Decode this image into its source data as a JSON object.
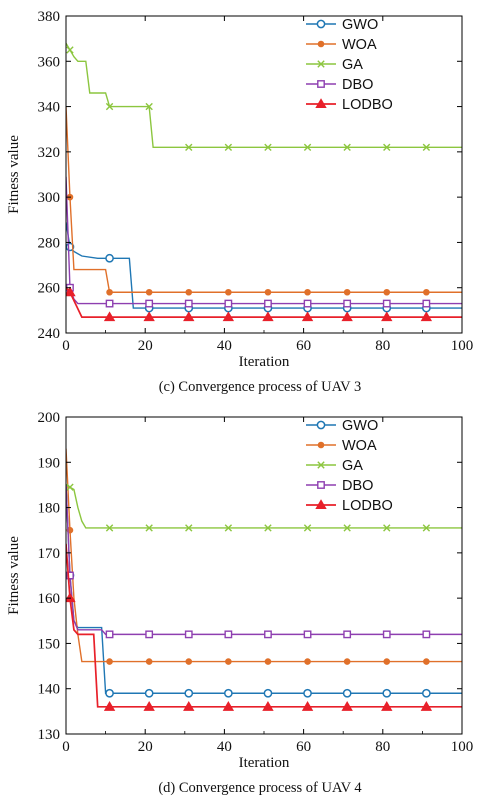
{
  "chart_data": [
    {
      "type": "line",
      "caption": "(c) Convergence process of UAV 3",
      "xlabel": "Iteration",
      "ylabel": "Fitness value",
      "xlim": [
        0,
        100
      ],
      "ylim": [
        240,
        380
      ],
      "xticks": [
        0,
        20,
        40,
        60,
        80,
        100
      ],
      "yticks": [
        240,
        260,
        280,
        300,
        320,
        340,
        360,
        380
      ],
      "legend_position": "top-right",
      "series": [
        {
          "name": "GWO",
          "color": "#1f77b4",
          "marker": "circle-open",
          "points": [
            [
              0,
              289
            ],
            [
              1,
              278
            ],
            [
              2,
              276
            ],
            [
              4,
              274
            ],
            [
              8,
              273
            ],
            [
              16,
              273
            ],
            [
              17,
              251
            ],
            [
              100,
              251
            ]
          ],
          "marker_x": [
            1,
            11,
            21,
            31,
            41,
            51,
            61,
            71,
            81,
            91
          ]
        },
        {
          "name": "WOA",
          "color": "#e0702a",
          "marker": "circle-filled",
          "points": [
            [
              0,
              340
            ],
            [
              1,
              300
            ],
            [
              2,
              268
            ],
            [
              10,
              268
            ],
            [
              11,
              258
            ],
            [
              100,
              258
            ]
          ],
          "marker_x": [
            1,
            11,
            21,
            31,
            41,
            51,
            61,
            71,
            81,
            91
          ]
        },
        {
          "name": "GA",
          "color": "#8cc63f",
          "marker": "x",
          "points": [
            [
              0,
              368
            ],
            [
              2,
              362
            ],
            [
              3,
              360
            ],
            [
              5,
              360
            ],
            [
              6,
              346
            ],
            [
              10,
              346
            ],
            [
              11,
              340
            ],
            [
              21,
              340
            ],
            [
              22,
              322
            ],
            [
              100,
              322
            ]
          ],
          "marker_x": [
            1,
            11,
            21,
            31,
            41,
            51,
            61,
            71,
            81,
            91
          ]
        },
        {
          "name": "DBO",
          "color": "#8e3fb0",
          "marker": "square-open",
          "points": [
            [
              0,
              309
            ],
            [
              1,
              260
            ],
            [
              2,
              255
            ],
            [
              3,
              253
            ],
            [
              100,
              253
            ]
          ],
          "marker_x": [
            1,
            11,
            21,
            31,
            41,
            51,
            61,
            71,
            81,
            91
          ]
        },
        {
          "name": "LODBO",
          "color": "#e8202a",
          "marker": "triangle-filled",
          "points": [
            [
              0,
              260
            ],
            [
              1,
              258
            ],
            [
              4,
              247
            ],
            [
              100,
              247
            ]
          ],
          "marker_x": [
            1,
            11,
            21,
            31,
            41,
            51,
            61,
            71,
            81,
            91
          ]
        }
      ]
    },
    {
      "type": "line",
      "caption": "(d) Convergence process of UAV 4",
      "xlabel": "Iteration",
      "ylabel": "Fitness value",
      "xlim": [
        0,
        100
      ],
      "ylim": [
        130,
        200
      ],
      "xticks": [
        0,
        20,
        40,
        60,
        80,
        100
      ],
      "yticks": [
        130,
        140,
        150,
        160,
        170,
        180,
        190,
        200
      ],
      "legend_position": "top-right",
      "series": [
        {
          "name": "GWO",
          "color": "#1f77b4",
          "marker": "circle-open",
          "points": [
            [
              0,
              185
            ],
            [
              1,
              165
            ],
            [
              2,
              155
            ],
            [
              3,
              153.5
            ],
            [
              9,
              153.5
            ],
            [
              10,
              139
            ],
            [
              100,
              139
            ]
          ],
          "marker_x": [
            1,
            11,
            21,
            31,
            41,
            51,
            61,
            71,
            81,
            91
          ]
        },
        {
          "name": "WOA",
          "color": "#e0702a",
          "marker": "circle-filled",
          "points": [
            [
              0,
              193
            ],
            [
              1,
              175
            ],
            [
              2,
              160
            ],
            [
              3,
              152
            ],
            [
              4,
              146
            ],
            [
              11,
              146
            ],
            [
              12,
              146
            ],
            [
              100,
              146
            ]
          ],
          "marker_x": [
            1,
            11,
            21,
            31,
            41,
            51,
            61,
            71,
            81,
            91
          ]
        },
        {
          "name": "GA",
          "color": "#8cc63f",
          "marker": "x",
          "points": [
            [
              0,
              185
            ],
            [
              2,
              184
            ],
            [
              3,
              180
            ],
            [
              4,
              177
            ],
            [
              5,
              175.5
            ],
            [
              100,
              175.5
            ]
          ],
          "marker_x": [
            1,
            11,
            21,
            31,
            41,
            51,
            61,
            71,
            81,
            91
          ]
        },
        {
          "name": "DBO",
          "color": "#8e3fb0",
          "marker": "square-open",
          "points": [
            [
              0,
              185
            ],
            [
              1,
              165
            ],
            [
              2,
              155
            ],
            [
              3,
              153
            ],
            [
              9,
              153
            ],
            [
              10,
              152
            ],
            [
              100,
              152
            ]
          ],
          "marker_x": [
            1,
            11,
            21,
            31,
            41,
            51,
            61,
            71,
            81,
            91
          ]
        },
        {
          "name": "LODBO",
          "color": "#e8202a",
          "marker": "triangle-filled",
          "points": [
            [
              0,
              172
            ],
            [
              1,
              160
            ],
            [
              2,
              153
            ],
            [
              3,
              152
            ],
            [
              7,
              152
            ],
            [
              8,
              136
            ],
            [
              100,
              136
            ]
          ],
          "marker_x": [
            1,
            11,
            21,
            31,
            41,
            51,
            61,
            71,
            81,
            91
          ]
        }
      ]
    }
  ]
}
